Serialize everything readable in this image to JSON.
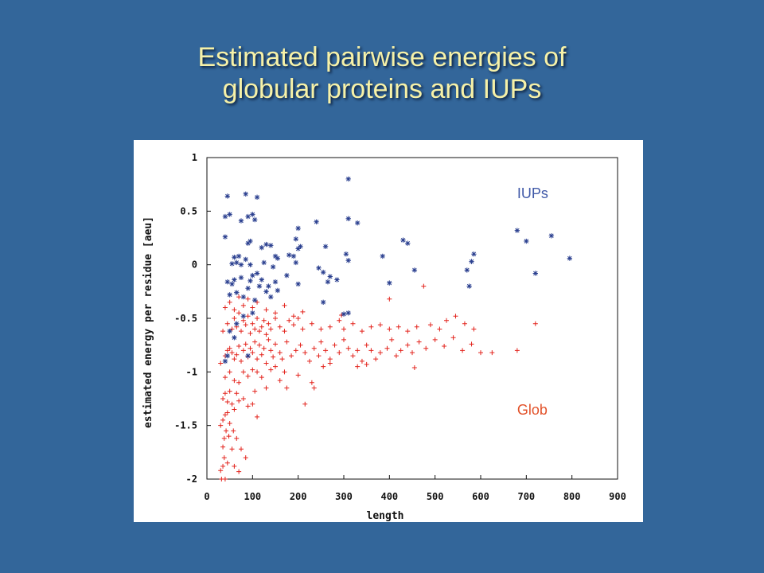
{
  "slide": {
    "title_line1": "Estimated pairwise energies of",
    "title_line2": "globular proteins and IUPs",
    "background_color": "#33669a",
    "title_color": "#f6f1a8"
  },
  "chart_data": {
    "type": "scatter",
    "title": "",
    "xlabel": "length",
    "ylabel": "estimated energy per residue [aeu]",
    "xlim": [
      0,
      900
    ],
    "ylim": [
      -2,
      1
    ],
    "x_ticks": [
      0,
      100,
      200,
      300,
      400,
      500,
      600,
      700,
      800,
      900
    ],
    "y_ticks": [
      -2,
      -1.5,
      -1,
      -0.5,
      0,
      0.5,
      1
    ],
    "y_tick_labels": [
      "-2",
      "-1.5",
      "-1",
      "-0.5",
      "0",
      "0.5",
      "1"
    ],
    "grid": false,
    "series": [
      {
        "name": "IUPs",
        "marker": "asterisk",
        "color": "#2a3f8f",
        "points": [
          [
            310,
            0.8
          ],
          [
            85,
            0.66
          ],
          [
            45,
            0.64
          ],
          [
            110,
            0.63
          ],
          [
            40,
            0.45
          ],
          [
            50,
            0.47
          ],
          [
            75,
            0.41
          ],
          [
            90,
            0.45
          ],
          [
            100,
            0.47
          ],
          [
            105,
            0.42
          ],
          [
            240,
            0.4
          ],
          [
            310,
            0.43
          ],
          [
            330,
            0.39
          ],
          [
            200,
            0.34
          ],
          [
            40,
            0.26
          ],
          [
            90,
            0.2
          ],
          [
            95,
            0.22
          ],
          [
            130,
            0.19
          ],
          [
            140,
            0.18
          ],
          [
            120,
            0.16
          ],
          [
            195,
            0.24
          ],
          [
            200,
            0.15
          ],
          [
            205,
            0.17
          ],
          [
            260,
            0.17
          ],
          [
            305,
            0.1
          ],
          [
            310,
            0.04
          ],
          [
            430,
            0.23
          ],
          [
            440,
            0.2
          ],
          [
            385,
            0.08
          ],
          [
            180,
            0.09
          ],
          [
            190,
            0.08
          ],
          [
            60,
            0.07
          ],
          [
            70,
            0.08
          ],
          [
            85,
            0.05
          ],
          [
            150,
            0.08
          ],
          [
            155,
            0.06
          ],
          [
            55,
            0.01
          ],
          [
            65,
            0.02
          ],
          [
            75,
            0.0
          ],
          [
            95,
            0.0
          ],
          [
            125,
            0.02
          ],
          [
            145,
            -0.02
          ],
          [
            195,
            0.02
          ],
          [
            245,
            -0.03
          ],
          [
            255,
            -0.07
          ],
          [
            270,
            -0.11
          ],
          [
            285,
            -0.14
          ],
          [
            45,
            -0.16
          ],
          [
            55,
            -0.18
          ],
          [
            60,
            -0.14
          ],
          [
            75,
            -0.12
          ],
          [
            95,
            -0.15
          ],
          [
            100,
            -0.1
          ],
          [
            110,
            -0.08
          ],
          [
            120,
            -0.14
          ],
          [
            135,
            -0.2
          ],
          [
            150,
            -0.16
          ],
          [
            175,
            -0.1
          ],
          [
            200,
            -0.18
          ],
          [
            265,
            -0.16
          ],
          [
            50,
            -0.28
          ],
          [
            65,
            -0.26
          ],
          [
            80,
            -0.3
          ],
          [
            90,
            -0.22
          ],
          [
            105,
            -0.33
          ],
          [
            115,
            -0.2
          ],
          [
            130,
            -0.25
          ],
          [
            140,
            -0.3
          ],
          [
            155,
            -0.24
          ],
          [
            255,
            -0.35
          ],
          [
            300,
            -0.46
          ],
          [
            310,
            -0.45
          ],
          [
            400,
            -0.17
          ],
          [
            455,
            -0.05
          ],
          [
            570,
            -0.05
          ],
          [
            580,
            0.03
          ],
          [
            585,
            0.1
          ],
          [
            575,
            -0.2
          ],
          [
            680,
            0.32
          ],
          [
            700,
            0.22
          ],
          [
            720,
            -0.08
          ],
          [
            755,
            0.27
          ],
          [
            795,
            0.06
          ],
          [
            50,
            -0.62
          ],
          [
            65,
            -0.55
          ],
          [
            80,
            -0.48
          ],
          [
            100,
            -0.45
          ],
          [
            60,
            -0.68
          ],
          [
            45,
            -0.85
          ],
          [
            40,
            -0.9
          ],
          [
            90,
            -0.85
          ]
        ]
      },
      {
        "name": "Glob",
        "marker": "plus",
        "color": "#e3231c",
        "points": [
          [
            30,
            -1.92
          ],
          [
            32,
            -2.0
          ],
          [
            35,
            -1.88
          ],
          [
            38,
            -1.8
          ],
          [
            40,
            -2.0
          ],
          [
            45,
            -1.85
          ],
          [
            35,
            -1.7
          ],
          [
            38,
            -1.62
          ],
          [
            42,
            -1.55
          ],
          [
            48,
            -1.6
          ],
          [
            55,
            -1.72
          ],
          [
            60,
            -1.88
          ],
          [
            30,
            -1.5
          ],
          [
            35,
            -1.45
          ],
          [
            40,
            -1.4
          ],
          [
            45,
            -1.38
          ],
          [
            50,
            -1.48
          ],
          [
            58,
            -1.55
          ],
          [
            65,
            -1.62
          ],
          [
            75,
            -1.72
          ],
          [
            85,
            -1.8
          ],
          [
            70,
            -1.93
          ],
          [
            100,
            -1.3
          ],
          [
            35,
            -1.25
          ],
          [
            40,
            -1.2
          ],
          [
            45,
            -1.28
          ],
          [
            50,
            -1.18
          ],
          [
            55,
            -1.3
          ],
          [
            60,
            -1.35
          ],
          [
            65,
            -1.2
          ],
          [
            70,
            -1.27
          ],
          [
            80,
            -1.25
          ],
          [
            90,
            -1.32
          ],
          [
            105,
            -1.18
          ],
          [
            110,
            -1.42
          ],
          [
            120,
            -1.05
          ],
          [
            130,
            -1.15
          ],
          [
            160,
            -1.08
          ],
          [
            175,
            -1.15
          ],
          [
            200,
            -1.03
          ],
          [
            40,
            -1.05
          ],
          [
            50,
            -1.0
          ],
          [
            60,
            -1.08
          ],
          [
            70,
            -1.1
          ],
          [
            80,
            -1.0
          ],
          [
            90,
            -1.04
          ],
          [
            100,
            -0.98
          ],
          [
            110,
            -1.0
          ],
          [
            140,
            -0.98
          ],
          [
            150,
            -0.95
          ],
          [
            170,
            -1.0
          ],
          [
            215,
            -1.3
          ],
          [
            230,
            -1.1
          ],
          [
            235,
            -1.15
          ],
          [
            255,
            -0.95
          ],
          [
            270,
            -0.92
          ],
          [
            30,
            -0.92
          ],
          [
            40,
            -0.85
          ],
          [
            45,
            -0.8
          ],
          [
            50,
            -0.78
          ],
          [
            55,
            -0.82
          ],
          [
            60,
            -0.88
          ],
          [
            65,
            -0.84
          ],
          [
            70,
            -0.76
          ],
          [
            75,
            -0.9
          ],
          [
            80,
            -0.8
          ],
          [
            85,
            -0.74
          ],
          [
            90,
            -0.86
          ],
          [
            95,
            -0.78
          ],
          [
            100,
            -0.82
          ],
          [
            105,
            -0.72
          ],
          [
            110,
            -0.88
          ],
          [
            115,
            -0.75
          ],
          [
            120,
            -0.84
          ],
          [
            125,
            -0.78
          ],
          [
            130,
            -0.92
          ],
          [
            135,
            -0.7
          ],
          [
            140,
            -0.8
          ],
          [
            145,
            -0.86
          ],
          [
            150,
            -0.74
          ],
          [
            160,
            -0.82
          ],
          [
            165,
            -0.88
          ],
          [
            175,
            -0.72
          ],
          [
            185,
            -0.85
          ],
          [
            195,
            -0.8
          ],
          [
            205,
            -0.75
          ],
          [
            215,
            -0.82
          ],
          [
            225,
            -0.9
          ],
          [
            235,
            -0.78
          ],
          [
            245,
            -0.85
          ],
          [
            250,
            -0.72
          ],
          [
            260,
            -0.8
          ],
          [
            270,
            -0.88
          ],
          [
            280,
            -0.75
          ],
          [
            290,
            -0.82
          ],
          [
            300,
            -0.7
          ],
          [
            310,
            -0.78
          ],
          [
            320,
            -0.85
          ],
          [
            330,
            -0.8
          ],
          [
            340,
            -0.9
          ],
          [
            350,
            -0.75
          ],
          [
            360,
            -0.8
          ],
          [
            370,
            -0.88
          ],
          [
            380,
            -0.82
          ],
          [
            395,
            -0.78
          ],
          [
            405,
            -0.7
          ],
          [
            415,
            -0.85
          ],
          [
            425,
            -0.8
          ],
          [
            440,
            -0.75
          ],
          [
            450,
            -0.82
          ],
          [
            465,
            -0.72
          ],
          [
            480,
            -0.78
          ],
          [
            500,
            -0.7
          ],
          [
            520,
            -0.76
          ],
          [
            540,
            -0.68
          ],
          [
            560,
            -0.8
          ],
          [
            580,
            -0.74
          ],
          [
            600,
            -0.82
          ],
          [
            625,
            -0.82
          ],
          [
            680,
            -0.8
          ],
          [
            455,
            -0.96
          ],
          [
            330,
            -0.95
          ],
          [
            350,
            -0.93
          ],
          [
            35,
            -0.62
          ],
          [
            45,
            -0.55
          ],
          [
            55,
            -0.6
          ],
          [
            60,
            -0.5
          ],
          [
            65,
            -0.58
          ],
          [
            70,
            -0.45
          ],
          [
            75,
            -0.62
          ],
          [
            80,
            -0.52
          ],
          [
            85,
            -0.56
          ],
          [
            90,
            -0.48
          ],
          [
            95,
            -0.64
          ],
          [
            100,
            -0.55
          ],
          [
            105,
            -0.6
          ],
          [
            110,
            -0.5
          ],
          [
            115,
            -0.62
          ],
          [
            120,
            -0.58
          ],
          [
            125,
            -0.52
          ],
          [
            130,
            -0.65
          ],
          [
            135,
            -0.55
          ],
          [
            140,
            -0.6
          ],
          [
            150,
            -0.5
          ],
          [
            160,
            -0.58
          ],
          [
            170,
            -0.62
          ],
          [
            180,
            -0.52
          ],
          [
            190,
            -0.56
          ],
          [
            200,
            -0.5
          ],
          [
            210,
            -0.6
          ],
          [
            230,
            -0.55
          ],
          [
            250,
            -0.6
          ],
          [
            270,
            -0.58
          ],
          [
            290,
            -0.52
          ],
          [
            300,
            -0.6
          ],
          [
            320,
            -0.55
          ],
          [
            340,
            -0.62
          ],
          [
            360,
            -0.58
          ],
          [
            380,
            -0.56
          ],
          [
            400,
            -0.6
          ],
          [
            420,
            -0.58
          ],
          [
            440,
            -0.62
          ],
          [
            460,
            -0.58
          ],
          [
            490,
            -0.56
          ],
          [
            510,
            -0.6
          ],
          [
            525,
            -0.52
          ],
          [
            545,
            -0.48
          ],
          [
            565,
            -0.55
          ],
          [
            585,
            -0.6
          ],
          [
            720,
            -0.55
          ],
          [
            40,
            -0.4
          ],
          [
            50,
            -0.35
          ],
          [
            60,
            -0.42
          ],
          [
            70,
            -0.3
          ],
          [
            80,
            -0.38
          ],
          [
            90,
            -0.32
          ],
          [
            100,
            -0.4
          ],
          [
            110,
            -0.35
          ],
          [
            130,
            -0.42
          ],
          [
            150,
            -0.45
          ],
          [
            170,
            -0.38
          ],
          [
            190,
            -0.48
          ],
          [
            210,
            -0.44
          ],
          [
            295,
            -0.47
          ],
          [
            475,
            -0.2
          ],
          [
            400,
            -0.32
          ]
        ]
      }
    ]
  }
}
